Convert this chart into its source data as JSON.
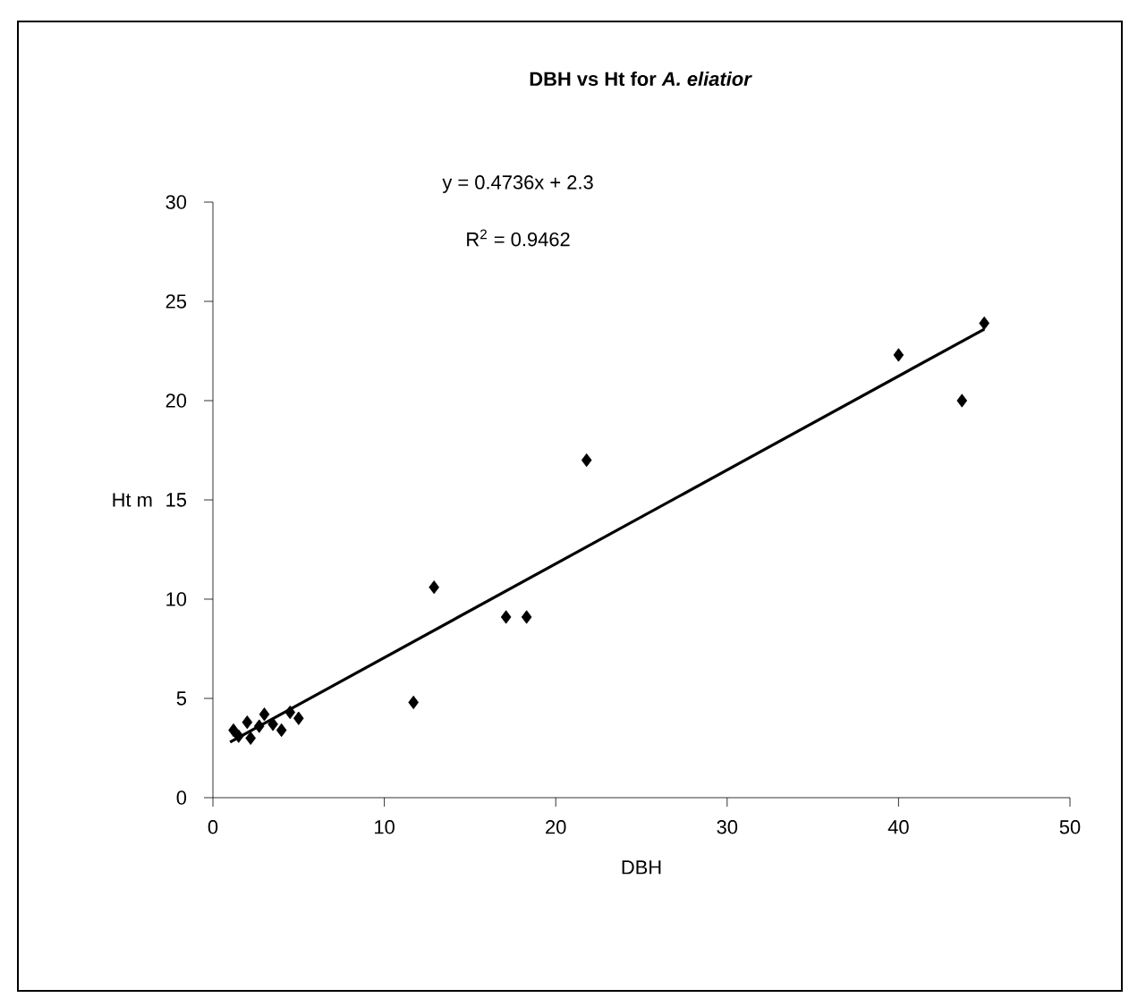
{
  "chart_data": {
    "type": "scatter",
    "title": "DBH vs Ht for *A. eliatior*",
    "xlabel": "DBH",
    "ylabel": "Ht m",
    "annotations": [
      "y = 0.4736x + 2.3",
      "R$^{2}$ = 0.9462"
    ],
    "series": [
      {
        "color": "#000000",
        "marker": "diamond",
        "x": [
          1.2,
          1.5,
          2.0,
          2.2,
          2.7,
          3.0,
          3.5,
          4.0,
          4.5,
          5.0,
          11.7,
          12.9,
          17.1,
          18.3,
          21.8,
          40.0,
          43.7,
          45.0
        ],
        "values": [
          3.4,
          3.1,
          3.8,
          3.0,
          3.6,
          4.2,
          3.7,
          3.4,
          4.3,
          4.0,
          4.8,
          10.6,
          9.1,
          9.1,
          17.0,
          22.3,
          20.0,
          23.9
        ]
      },
      {
        "type": "line",
        "color": "#000000",
        "marker": "none",
        "x": [
          1.0,
          45.0
        ],
        "values": [
          2.8,
          23.6
        ]
      }
    ],
    "xlim": [
      0,
      50
    ],
    "xticks": [
      0,
      10,
      20,
      30,
      40,
      50
    ],
    "ylim": [
      0,
      30
    ],
    "yticks": [
      0,
      5,
      10,
      15,
      20,
      25,
      30
    ],
    "grid": false
  }
}
